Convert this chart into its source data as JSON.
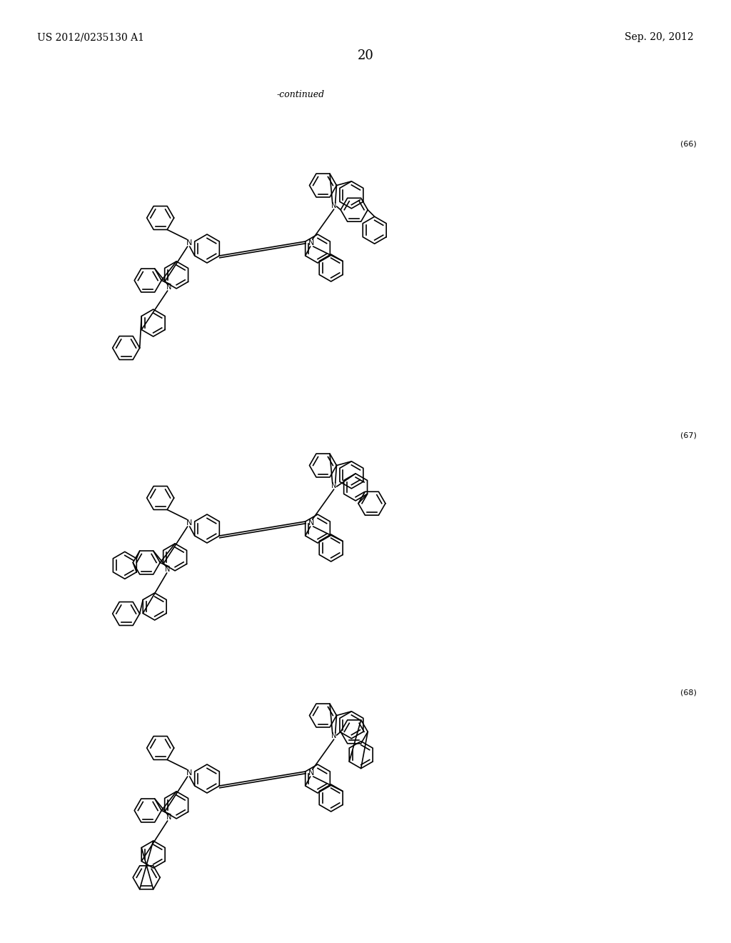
{
  "title_left": "US 2012/0235130 A1",
  "title_right": "Sep. 20, 2012",
  "page_number": "20",
  "continued_text": "-continued",
  "compound_numbers": [
    "(66)",
    "(67)",
    "(68)"
  ],
  "bg": "#ffffff",
  "lw": 1.2,
  "R": 20,
  "fig_width": 10.24,
  "fig_height": 13.2
}
